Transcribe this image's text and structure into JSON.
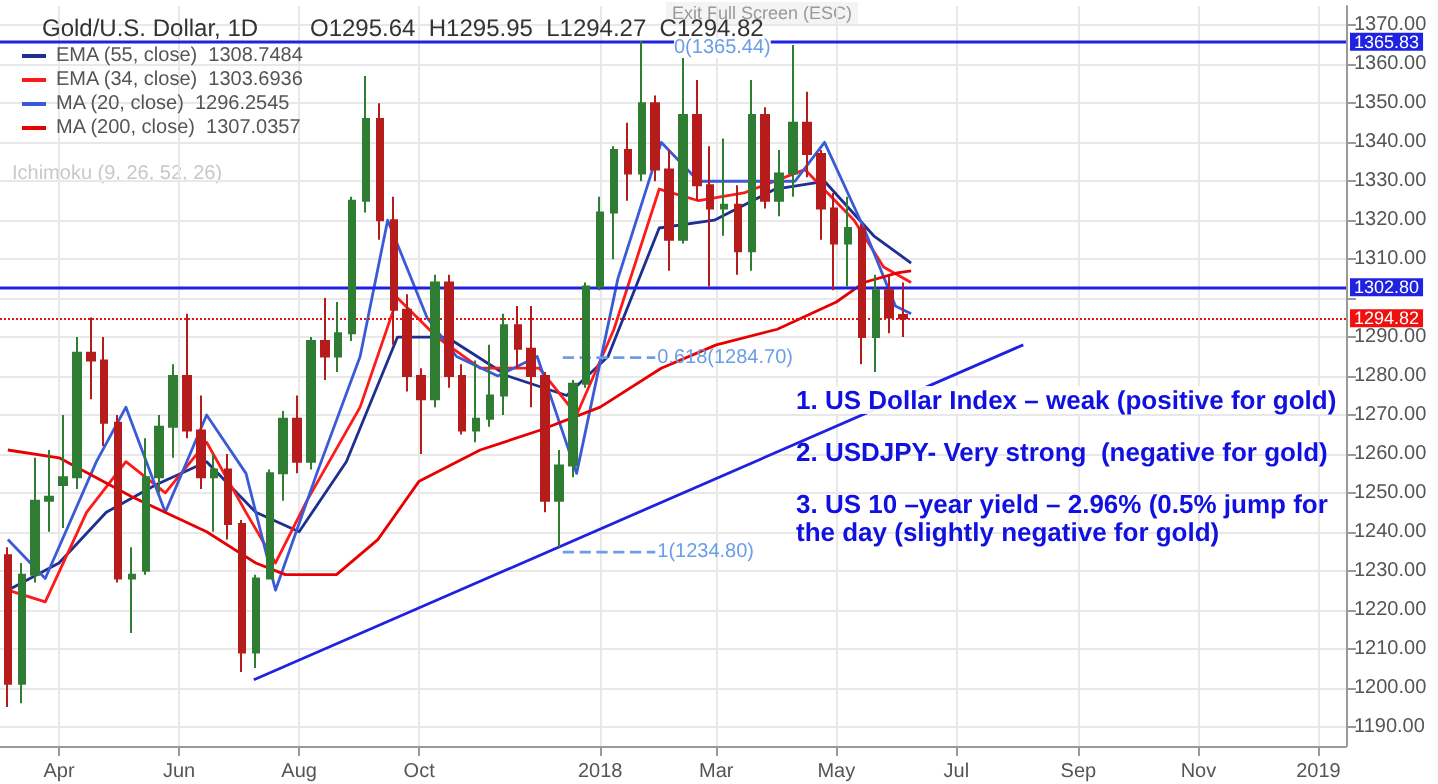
{
  "chart_data": {
    "type": "candlestick",
    "title": "Gold/U.S. Dollar, 1D",
    "subtitle": "O1295.64  H1295.95  L1294.27  C1294.82",
    "x": [
      "2017-03-06",
      "2017-03-13",
      "2017-03-20",
      "2017-03-27",
      "2017-04-03",
      "2017-04-10",
      "2017-04-17",
      "2017-04-24",
      "2017-05-01",
      "2017-05-08",
      "2017-05-15",
      "2017-05-22",
      "2017-05-29",
      "2017-06-05",
      "2017-06-12",
      "2017-06-19",
      "2017-06-26",
      "2017-07-03",
      "2017-07-10",
      "2017-07-17",
      "2017-07-24",
      "2017-07-31",
      "2017-08-07",
      "2017-08-14",
      "2017-08-21",
      "2017-08-28",
      "2017-09-04",
      "2017-09-11",
      "2017-09-18",
      "2017-09-25",
      "2017-10-02",
      "2017-10-09",
      "2017-10-16",
      "2017-10-23",
      "2017-10-30",
      "2017-11-06",
      "2017-11-13",
      "2017-11-20",
      "2017-11-27",
      "2017-12-04",
      "2017-12-11",
      "2017-12-18",
      "2017-12-25",
      "2018-01-01",
      "2018-01-08",
      "2018-01-15",
      "2018-01-22",
      "2018-01-29",
      "2018-02-05",
      "2018-02-12",
      "2018-02-19",
      "2018-02-26",
      "2018-03-05",
      "2018-03-12",
      "2018-03-19",
      "2018-03-26",
      "2018-04-02",
      "2018-04-09",
      "2018-04-16",
      "2018-04-23",
      "2018-04-30",
      "2018-05-07",
      "2018-05-14",
      "2018-05-21",
      "2018-05-28",
      "2018-06-04"
    ],
    "series": [
      {
        "ohlc": [
          [
            1234,
            1236,
            1195,
            1201
          ],
          [
            1201,
            1232,
            1196,
            1229
          ],
          [
            1229,
            1259,
            1227,
            1248
          ],
          [
            1248,
            1261,
            1240,
            1249
          ],
          [
            1252,
            1270,
            1241,
            1254
          ],
          [
            1254,
            1290,
            1251,
            1286
          ],
          [
            1286,
            1295,
            1274,
            1284
          ],
          [
            1284,
            1290,
            1262,
            1268
          ],
          [
            1268,
            1270,
            1227,
            1228
          ],
          [
            1228,
            1236,
            1214,
            1229
          ],
          [
            1230,
            1264,
            1229,
            1254
          ],
          [
            1254,
            1270,
            1250,
            1267
          ],
          [
            1267,
            1283,
            1259,
            1280
          ],
          [
            1280,
            1296,
            1264,
            1266
          ],
          [
            1266,
            1275,
            1251,
            1254
          ],
          [
            1254,
            1260,
            1240,
            1256
          ],
          [
            1256,
            1260,
            1238,
            1242
          ],
          [
            1242,
            1243,
            1204,
            1209
          ],
          [
            1209,
            1229,
            1205,
            1228
          ],
          [
            1228,
            1256,
            1228,
            1255
          ],
          [
            1255,
            1271,
            1248,
            1269
          ],
          [
            1269,
            1275,
            1255,
            1258
          ],
          [
            1258,
            1290,
            1256,
            1289
          ],
          [
            1289,
            1300,
            1279,
            1285
          ],
          [
            1285,
            1299,
            1281,
            1291
          ],
          [
            1291,
            1326,
            1289,
            1325
          ],
          [
            1325,
            1357,
            1322,
            1346
          ],
          [
            1346,
            1350,
            1315,
            1320
          ],
          [
            1320,
            1326,
            1288,
            1297
          ],
          [
            1297,
            1301,
            1276,
            1280
          ],
          [
            1280,
            1282,
            1260,
            1274
          ],
          [
            1274,
            1306,
            1272,
            1304
          ],
          [
            1304,
            1306,
            1277,
            1280
          ],
          [
            1280,
            1283,
            1265,
            1266
          ],
          [
            1266,
            1284,
            1263,
            1269
          ],
          [
            1269,
            1288,
            1267,
            1275
          ],
          [
            1275,
            1296,
            1270,
            1293
          ],
          [
            1293,
            1298,
            1282,
            1287
          ],
          [
            1287,
            1298,
            1272,
            1280
          ],
          [
            1280,
            1281,
            1245,
            1248
          ],
          [
            1248,
            1261,
            1236,
            1257
          ],
          [
            1257,
            1279,
            1254,
            1278
          ],
          [
            1278,
            1304,
            1277,
            1303
          ],
          [
            1303,
            1326,
            1302,
            1322
          ],
          [
            1322,
            1339,
            1310,
            1338
          ],
          [
            1338,
            1345,
            1325,
            1332
          ],
          [
            1332,
            1366,
            1330,
            1350
          ],
          [
            1350,
            1352,
            1330,
            1333
          ],
          [
            1333,
            1338,
            1307,
            1315
          ],
          [
            1315,
            1362,
            1314,
            1347
          ],
          [
            1347,
            1356,
            1325,
            1329
          ],
          [
            1329,
            1339,
            1303,
            1323
          ],
          [
            1323,
            1341,
            1316,
            1324
          ],
          [
            1324,
            1329,
            1306,
            1312
          ],
          [
            1312,
            1356,
            1307,
            1347
          ],
          [
            1347,
            1349,
            1323,
            1325
          ],
          [
            1325,
            1338,
            1321,
            1332
          ],
          [
            1332,
            1365,
            1326,
            1345
          ],
          [
            1345,
            1353,
            1331,
            1337
          ],
          [
            1337,
            1338,
            1315,
            1323
          ],
          [
            1323,
            1327,
            1302,
            1314
          ],
          [
            1314,
            1326,
            1303,
            1318
          ],
          [
            1318,
            1319,
            1283,
            1290
          ],
          [
            1290,
            1306,
            1281,
            1302
          ],
          [
            1302,
            1306,
            1291,
            1295
          ],
          [
            1295.64,
            1304,
            1290,
            1294.82
          ]
        ],
        "colors": [
          "#b71c1c",
          "#2e7d32",
          "#2e7d32",
          "#2e7d32",
          "#2e7d32",
          "#2e7d32",
          "#b71c1c",
          "#b71c1c",
          "#b71c1c",
          "#2e7d32",
          "#2e7d32",
          "#2e7d32",
          "#2e7d32",
          "#b71c1c",
          "#b71c1c",
          "#2e7d32",
          "#b71c1c",
          "#b71c1c",
          "#2e7d32",
          "#2e7d32",
          "#2e7d32",
          "#b71c1c",
          "#2e7d32",
          "#b71c1c",
          "#2e7d32",
          "#2e7d32",
          "#2e7d32",
          "#b71c1c",
          "#b71c1c",
          "#b71c1c",
          "#b71c1c",
          "#2e7d32",
          "#b71c1c",
          "#b71c1c",
          "#2e7d32",
          "#2e7d32",
          "#2e7d32",
          "#b71c1c",
          "#b71c1c",
          "#b71c1c",
          "#2e7d32",
          "#2e7d32",
          "#2e7d32",
          "#2e7d32",
          "#2e7d32",
          "#b71c1c",
          "#2e7d32",
          "#b71c1c",
          "#b71c1c",
          "#2e7d32",
          "#b71c1c",
          "#b71c1c",
          "#2e7d32",
          "#b71c1c",
          "#2e7d32",
          "#b71c1c",
          "#2e7d32",
          "#2e7d32",
          "#b71c1c",
          "#b71c1c",
          "#b71c1c",
          "#2e7d32",
          "#b71c1c",
          "#2e7d32",
          "#b71c1c",
          "#b71c1c"
        ]
      },
      {
        "type": "line",
        "name": "EMA (55, close)  1308.7484",
        "color": "#1f2f8f",
        "x": [
          "2017-03-06",
          "2017-04-01",
          "2017-04-25",
          "2017-05-20",
          "2017-06-15",
          "2017-07-10",
          "2017-08-01",
          "2017-08-25",
          "2017-09-20",
          "2017-10-15",
          "2017-11-15",
          "2017-12-15",
          "2018-01-05",
          "2018-01-31",
          "2018-02-28",
          "2018-03-31",
          "2018-04-25",
          "2018-05-20",
          "2018-06-08"
        ],
        "values": [
          1225,
          1232,
          1245,
          1252,
          1258,
          1245,
          1240,
          1258,
          1290,
          1290,
          1280,
          1275,
          1285,
          1318,
          1320,
          1328,
          1330,
          1316,
          1309
        ]
      },
      {
        "type": "line",
        "name": "EMA (34, close)  1303.6936",
        "color": "#ff1a1a",
        "x": [
          "2017-03-06",
          "2017-03-25",
          "2017-04-15",
          "2017-05-05",
          "2017-05-25",
          "2017-06-15",
          "2017-07-05",
          "2017-07-20",
          "2017-08-05",
          "2017-09-01",
          "2017-09-20",
          "2017-10-10",
          "2017-11-01",
          "2017-12-01",
          "2017-12-20",
          "2018-01-08",
          "2018-01-31",
          "2018-02-20",
          "2018-03-15",
          "2018-04-15",
          "2018-05-10",
          "2018-05-25",
          "2018-06-08"
        ],
        "values": [
          1225,
          1222,
          1245,
          1258,
          1250,
          1263,
          1245,
          1232,
          1248,
          1272,
          1300,
          1290,
          1282,
          1282,
          1270,
          1292,
          1328,
          1325,
          1327,
          1333,
          1320,
          1308,
          1304
        ]
      },
      {
        "type": "line",
        "name": "MA (20, close)  1296.2545",
        "color": "#3b5bd6",
        "x": [
          "2017-03-06",
          "2017-03-25",
          "2017-04-20",
          "2017-05-05",
          "2017-05-25",
          "2017-06-15",
          "2017-07-05",
          "2017-07-20",
          "2017-08-10",
          "2017-09-01",
          "2017-09-15",
          "2017-10-05",
          "2017-10-20",
          "2017-11-10",
          "2017-11-30",
          "2017-12-20",
          "2018-01-10",
          "2018-02-01",
          "2018-02-20",
          "2018-03-15",
          "2018-04-10",
          "2018-04-25",
          "2018-05-15",
          "2018-05-31",
          "2018-06-08"
        ],
        "values": [
          1238,
          1228,
          1258,
          1272,
          1245,
          1270,
          1255,
          1225,
          1255,
          1285,
          1320,
          1295,
          1285,
          1280,
          1285,
          1255,
          1305,
          1340,
          1330,
          1330,
          1330,
          1340,
          1318,
          1298,
          1296
        ]
      },
      {
        "type": "line",
        "name": "MA (200, close)  1307.0357",
        "color": "#e60000",
        "x": [
          "2017-03-06",
          "2017-04-01",
          "2017-05-08",
          "2017-06-15",
          "2017-07-10",
          "2017-07-25",
          "2017-08-20",
          "2017-09-10",
          "2017-10-01",
          "2017-11-01",
          "2017-12-01",
          "2018-01-01",
          "2018-02-01",
          "2018-03-01",
          "2018-04-01",
          "2018-05-01",
          "2018-05-15",
          "2018-06-01",
          "2018-06-08"
        ],
        "values": [
          1261,
          1259,
          1249,
          1240,
          1232,
          1229,
          1229,
          1238,
          1253,
          1261,
          1266,
          1272,
          1282,
          1288,
          1292,
          1299,
          1304,
          1306.5,
          1307
        ]
      },
      {
        "type": "line",
        "color": "#2020e0",
        "x": [
          "2017-07-09",
          "2018-08-04"
        ],
        "values": [
          1202,
          1288
        ]
      },
      {
        "type": "line",
        "color": "#6b9de8",
        "line_style": "dashed",
        "x": [
          "2017-12-13",
          "2018-01-29"
        ],
        "values": [
          1284.7,
          1284.7
        ]
      },
      {
        "type": "line",
        "color": "#6b9de8",
        "line_style": "dashed",
        "x": [
          "2017-12-13",
          "2018-01-29"
        ],
        "values": [
          1234.8,
          1234.8
        ]
      }
    ],
    "xlim": [
      "2017-03-02",
      "2019-01-15"
    ],
    "xticks": [
      {
        "value": "2017-04-01",
        "label": "Apr"
      },
      {
        "value": "2017-06-01",
        "label": "Jun"
      },
      {
        "value": "2017-08-01",
        "label": "Aug"
      },
      {
        "value": "2017-10-01",
        "label": "Oct"
      },
      {
        "value": "2018-01-01",
        "label": "2018"
      },
      {
        "value": "2018-03-01",
        "label": "Mar"
      },
      {
        "value": "2018-05-01",
        "label": "May"
      },
      {
        "value": "2018-07-01",
        "label": "Jul"
      },
      {
        "value": "2018-09-01",
        "label": "Sep"
      },
      {
        "value": "2018-11-01",
        "label": "Nov"
      },
      {
        "value": "2019-01-01",
        "label": "2019"
      }
    ],
    "ylim": [
      1185,
      1375
    ],
    "yticks": [
      {
        "value": 1190,
        "label": "1190.00"
      },
      {
        "value": 1200,
        "label": "1200.00"
      },
      {
        "value": 1210,
        "label": "1210.00"
      },
      {
        "value": 1220,
        "label": "1220.00"
      },
      {
        "value": 1230,
        "label": "1230.00"
      },
      {
        "value": 1240,
        "label": "1240.00"
      },
      {
        "value": 1250,
        "label": "1250.00"
      },
      {
        "value": 1260,
        "label": "1260.00"
      },
      {
        "value": 1270,
        "label": "1270.00"
      },
      {
        "value": 1280,
        "label": "1280.00"
      },
      {
        "value": 1290,
        "label": "1290.00"
      },
      {
        "value": 1300,
        "label": null
      },
      {
        "value": 1310,
        "label": "1310.00"
      },
      {
        "value": 1320,
        "label": "1320.00"
      },
      {
        "value": 1330,
        "label": "1330.00"
      },
      {
        "value": 1340,
        "label": "1340.00"
      },
      {
        "value": 1350,
        "label": "1350.00"
      },
      {
        "value": 1360,
        "label": "1360.00"
      },
      {
        "value": 1370,
        "label": "1370.00"
      }
    ],
    "ref_lines": [
      {
        "axis": "y",
        "value": 1365.83,
        "label": "1365.83",
        "color": "#1f22e0"
      },
      {
        "axis": "y",
        "value": 1302.8,
        "label": "1302.80",
        "color": "#1f22e0"
      },
      {
        "axis": "y",
        "value": 1294.82,
        "label": "1294.82",
        "color": "#f01010",
        "line_style": "dotted"
      }
    ],
    "annotations": [
      "Exit Full Screen (ESC)",
      "Ichimoku (9, 26, 52, 26)",
      "0(1365.44)",
      "1. US Dollar Index – weak (positive for gold)",
      "2. USDJPY- Very strong  (negative for gold)",
      "3. US 10 –year yield – 2.96% (0.5% jump for\nthe day (slightly negative for gold)",
      {
        "text": "0.618(1284.70)",
        "x": "2018-01-30",
        "y": 1284.7
      },
      {
        "text": "1(1234.80)",
        "x": "2018-01-30",
        "y": 1234.8
      }
    ],
    "grid": true,
    "legend": "top left",
    "marker": "none"
  }
}
